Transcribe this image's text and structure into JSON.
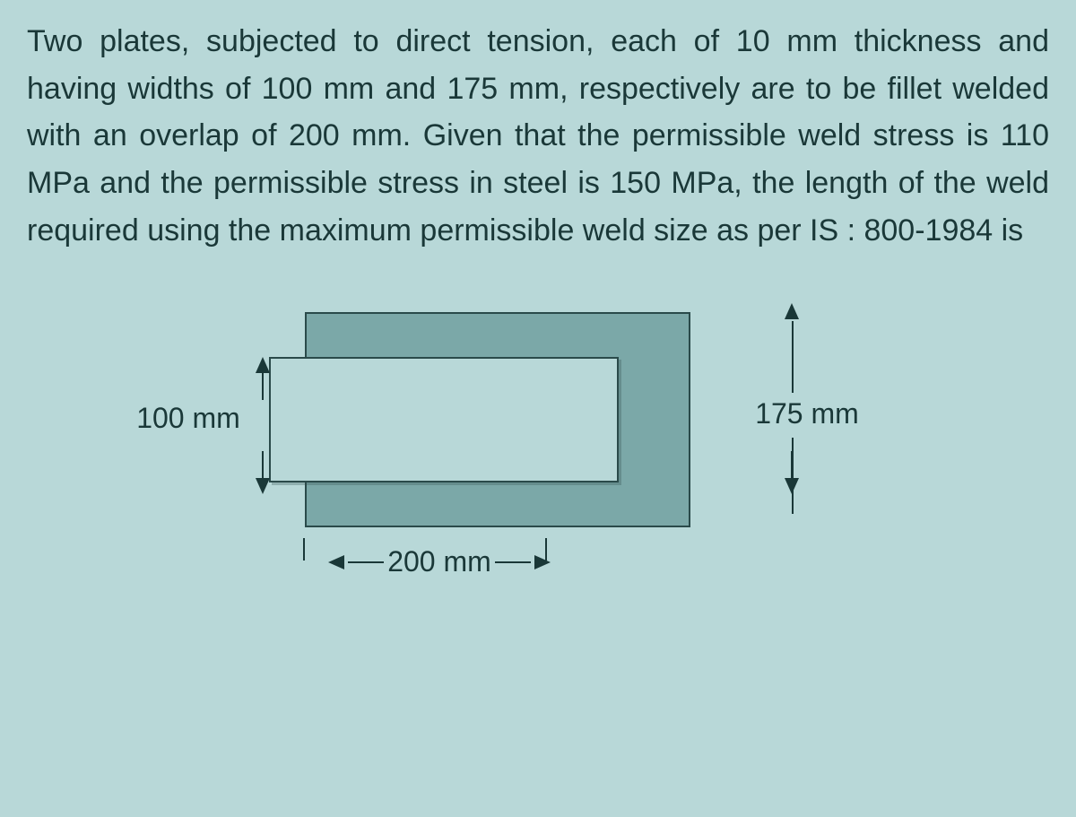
{
  "problem": {
    "text": "Two plates, subjected to direct tension, each of 10 mm thickness and having widths of 100 mm and 175 mm, respectively are to be fillet welded with an overlap of 200 mm. Given that the permissible weld stress is 110 MPa and the permissible stress in steel is 150 MPa, the length of the weld required using the maximum permissible weld size as per IS : 800-1984 is"
  },
  "diagram": {
    "left_dim": "100 mm",
    "right_dim": "175 mm",
    "bottom_dim": "200 mm",
    "colors": {
      "background": "#b8d8d8",
      "plate_back": "#7ba8a8",
      "plate_front": "#b8d8d8",
      "border": "#2a4a4a",
      "text": "#1a3838"
    },
    "plate_back_size": {
      "width_mm": 175,
      "overlap_mm": 200
    },
    "plate_front_size": {
      "width_mm": 100
    },
    "font_size_pt": 24
  }
}
